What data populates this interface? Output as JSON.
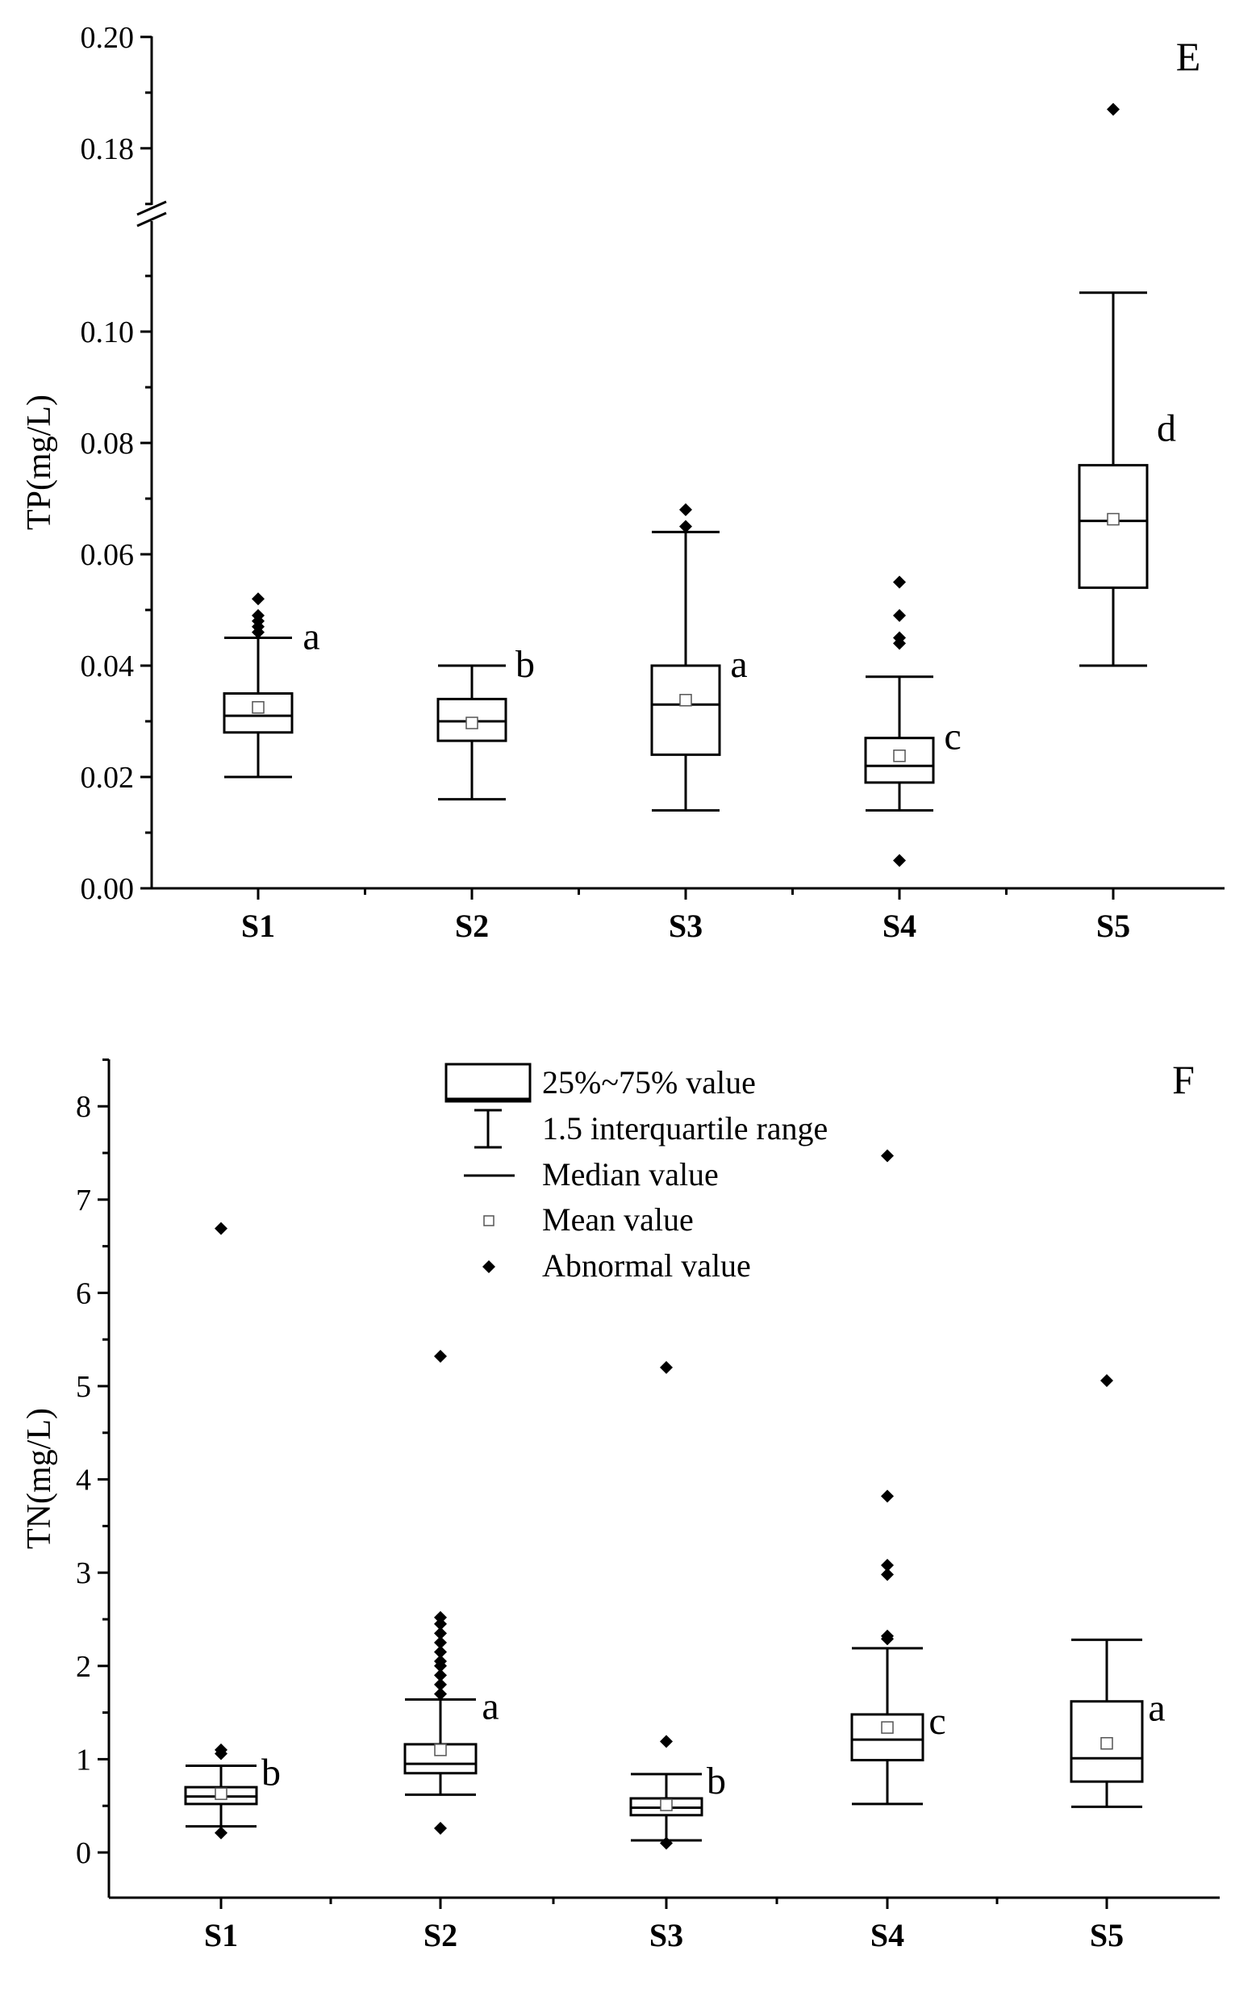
{
  "chart_data": [
    {
      "type": "box",
      "panel": "E",
      "ylabel": "TP(mg/L)",
      "xlabel": "",
      "categories": [
        "S1",
        "S2",
        "S3",
        "S4",
        "S5"
      ],
      "ylim": [
        0,
        0.2
      ],
      "axis_break": [
        0.115,
        0.168
      ],
      "yticks": [
        0.0,
        0.02,
        0.04,
        0.06,
        0.08,
        0.1,
        0.18,
        0.2
      ],
      "ytick_labels": [
        "0.00",
        "0.02",
        "0.04",
        "0.06",
        "0.08",
        "0.10",
        "0.18",
        "0.20"
      ],
      "boxes": [
        {
          "name": "S1",
          "whisker_low": 0.02,
          "q1": 0.028,
          "median": 0.031,
          "q3": 0.035,
          "whisker_high": 0.045,
          "mean": 0.0325,
          "outliers": [
            0.046,
            0.047,
            0.048,
            0.049,
            0.052
          ],
          "letter": "a"
        },
        {
          "name": "S2",
          "whisker_low": 0.016,
          "q1": 0.0265,
          "median": 0.03,
          "q3": 0.034,
          "whisker_high": 0.04,
          "mean": 0.0297,
          "outliers": [],
          "letter": "b"
        },
        {
          "name": "S3",
          "whisker_low": 0.014,
          "q1": 0.024,
          "median": 0.033,
          "q3": 0.04,
          "whisker_high": 0.064,
          "mean": 0.0338,
          "outliers": [
            0.065,
            0.068
          ],
          "letter": "a"
        },
        {
          "name": "S4",
          "whisker_low": 0.014,
          "q1": 0.019,
          "median": 0.022,
          "q3": 0.027,
          "whisker_high": 0.038,
          "mean": 0.0238,
          "outliers": [
            0.005,
            0.044,
            0.045,
            0.049,
            0.055
          ],
          "letter": "c"
        },
        {
          "name": "S5",
          "whisker_low": 0.04,
          "q1": 0.054,
          "median": 0.066,
          "q3": 0.076,
          "whisker_high": 0.107,
          "mean": 0.0663,
          "outliers": [
            0.187
          ],
          "letter": "d"
        }
      ]
    },
    {
      "type": "box",
      "panel": "F",
      "ylabel": "TN(mg/L)",
      "xlabel": "",
      "categories": [
        "S1",
        "S2",
        "S3",
        "S4",
        "S5"
      ],
      "ylim": [
        -0.5,
        8.5
      ],
      "yticks": [
        0,
        1,
        2,
        3,
        4,
        5,
        6,
        7,
        8
      ],
      "ytick_labels": [
        "0",
        "1",
        "2",
        "3",
        "4",
        "5",
        "6",
        "7",
        "8"
      ],
      "boxes": [
        {
          "name": "S1",
          "whisker_low": 0.28,
          "q1": 0.52,
          "median": 0.6,
          "q3": 0.7,
          "whisker_high": 0.93,
          "mean": 0.63,
          "outliers": [
            0.21,
            1.06,
            1.1,
            6.69
          ],
          "letter": "b"
        },
        {
          "name": "S2",
          "whisker_low": 0.62,
          "q1": 0.85,
          "median": 0.95,
          "q3": 1.16,
          "whisker_high": 1.64,
          "mean": 1.1,
          "outliers": [
            0.26,
            1.7,
            1.8,
            1.9,
            2.0,
            2.05,
            2.15,
            2.25,
            2.35,
            2.45,
            2.52,
            5.32
          ],
          "letter": "a"
        },
        {
          "name": "S3",
          "whisker_low": 0.13,
          "q1": 0.4,
          "median": 0.48,
          "q3": 0.58,
          "whisker_high": 0.84,
          "mean": 0.51,
          "outliers": [
            0.1,
            1.19,
            5.2
          ],
          "letter": "b"
        },
        {
          "name": "S4",
          "whisker_low": 0.52,
          "q1": 0.99,
          "median": 1.21,
          "q3": 1.48,
          "whisker_high": 2.19,
          "mean": 1.34,
          "outliers": [
            2.29,
            2.32,
            2.98,
            3.08,
            3.82,
            7.47
          ],
          "letter": "c"
        },
        {
          "name": "S5",
          "whisker_low": 0.49,
          "q1": 0.76,
          "median": 1.01,
          "q3": 1.62,
          "whisker_high": 2.28,
          "mean": 1.17,
          "outliers": [
            5.06
          ],
          "letter": "a"
        }
      ],
      "legend": {
        "placement": "top-center",
        "items": [
          {
            "symbol": "box",
            "label": "25%~75% value"
          },
          {
            "symbol": "whisker",
            "label": "1.5 interquartile range"
          },
          {
            "symbol": "median-line",
            "label": "Median value"
          },
          {
            "symbol": "mean-square",
            "label": "Mean value"
          },
          {
            "symbol": "diamond",
            "label": "Abnormal value"
          }
        ]
      }
    }
  ]
}
